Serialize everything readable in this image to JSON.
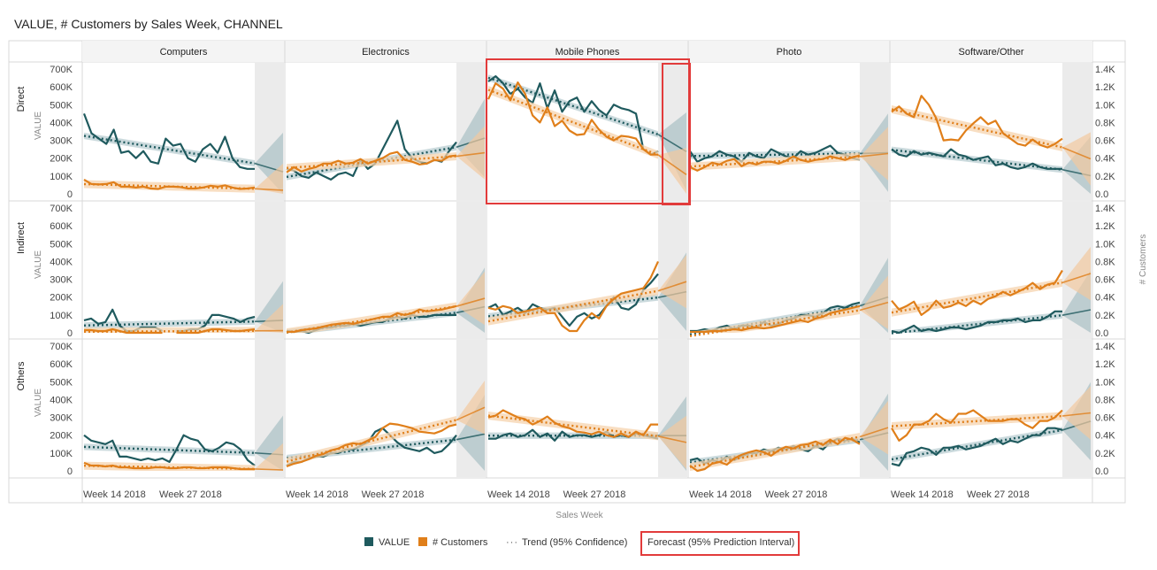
{
  "title": "VALUE, # Customers by Sales Week, CHANNEL",
  "colors": {
    "value": "#1f5a5e",
    "customers": "#e07f1a",
    "value_band": "#b9ced1",
    "customers_band": "#f5d3ad",
    "forecast_bg": "#ebebeb",
    "highlight": "#e23b3b",
    "grid_border": "#d9d9d9"
  },
  "legend": {
    "value": "VALUE",
    "customers": "# Customers",
    "trend": "Trend (95% Confidence)",
    "forecast": "Forecast (95% Prediction Interval)"
  },
  "chart_data": {
    "type": "line",
    "x_axis_title": "Sales Week",
    "y_axis_left_title": "VALUE",
    "y_axis_right_title": "# Customers",
    "x_ticks": [
      "Week 14 2018",
      "Week 27 2018"
    ],
    "y_left_ticks": [
      "0",
      "100K",
      "200K",
      "300K",
      "400K",
      "500K",
      "600K",
      "700K"
    ],
    "y_right_ticks": [
      "0.0",
      "0.2K",
      "0.4K",
      "0.6K",
      "0.8K",
      "1.0K",
      "1.2K",
      "1.4K"
    ],
    "y_left_range": [
      0,
      700000
    ],
    "y_right_range": [
      0,
      1400
    ],
    "columns": [
      "Computers",
      "Electronics",
      "Mobile Phones",
      "Photo",
      "Software/Other"
    ],
    "rows": [
      "Direct",
      "Indirect",
      "Others"
    ],
    "panels": [
      [
        {
          "value": [
            450,
            340,
            310,
            280,
            360,
            230,
            240,
            200,
            240,
            180,
            170,
            310,
            270,
            280,
            200,
            180,
            250,
            280,
            230,
            320,
            200,
            150,
            140,
            140
          ],
          "customers": [
            160,
            110,
            105,
            110,
            130,
            80,
            80,
            70,
            80,
            60,
            55,
            80,
            80,
            75,
            60,
            60,
            70,
            90,
            80,
            95,
            70,
            55,
            60,
            70
          ]
        },
        {
          "value": [
            140,
            130,
            100,
            90,
            120,
            100,
            80,
            110,
            120,
            100,
            190,
            140,
            170,
            250,
            330,
            410,
            250,
            200,
            180,
            170,
            190,
            180,
            240,
            290
          ],
          "customers": [
            240,
            300,
            250,
            280,
            300,
            340,
            340,
            370,
            340,
            350,
            390,
            340,
            370,
            400,
            450,
            470,
            380,
            360,
            330,
            340,
            380,
            370,
            420,
            430
          ]
        },
        {
          "value": [
            630,
            660,
            620,
            560,
            590,
            540,
            510,
            620,
            480,
            580,
            460,
            520,
            540,
            460,
            520,
            470,
            440,
            500,
            480,
            470,
            450,
            250,
            220,
            240
          ],
          "customers": [
            1060,
            1240,
            1180,
            1050,
            1250,
            1120,
            880,
            800,
            970,
            760,
            820,
            710,
            660,
            670,
            830,
            720,
            640,
            600,
            650,
            640,
            620,
            500,
            440,
            440
          ]
        },
        {
          "value": [
            240,
            180,
            200,
            210,
            240,
            220,
            210,
            180,
            230,
            210,
            200,
            250,
            230,
            210,
            200,
            240,
            220,
            230,
            250,
            270,
            230,
            220,
            200,
            190
          ],
          "customers": [
            300,
            260,
            300,
            350,
            330,
            370,
            390,
            310,
            350,
            330,
            360,
            360,
            340,
            370,
            420,
            380,
            360,
            380,
            390,
            420,
            400,
            380,
            410,
            430
          ]
        },
        {
          "value": [
            250,
            220,
            210,
            240,
            220,
            230,
            220,
            210,
            250,
            220,
            210,
            190,
            200,
            210,
            160,
            170,
            150,
            140,
            150,
            170,
            150,
            140,
            140,
            140
          ],
          "customers": [
            920,
            980,
            900,
            860,
            1100,
            1000,
            850,
            600,
            610,
            600,
            710,
            790,
            860,
            780,
            820,
            680,
            620,
            560,
            540,
            610,
            550,
            520,
            560,
            620
          ]
        }
      ],
      [
        {
          "value": [
            70,
            80,
            50,
            60,
            130,
            40,
            10,
            10,
            30,
            30,
            30,
            10,
            null,
            10,
            10,
            20,
            20,
            40,
            100,
            100,
            90,
            80,
            60,
            80,
            90
          ],
          "customers": [
            30,
            30,
            20,
            20,
            40,
            20,
            0,
            0,
            0,
            0,
            0,
            0,
            null,
            0,
            0,
            0,
            0,
            20,
            40,
            40,
            30,
            20,
            20,
            30,
            40
          ]
        },
        {
          "value": [
            10,
            5,
            10,
            0,
            15,
            30,
            30,
            40,
            40,
            50,
            40,
            50,
            60,
            60,
            80,
            90,
            80,
            100,
            90,
            90,
            100,
            100,
            100,
            100
          ],
          "customers": [
            10,
            10,
            30,
            40,
            50,
            70,
            90,
            100,
            110,
            100,
            120,
            140,
            160,
            180,
            180,
            220,
            200,
            220,
            260,
            240,
            250,
            260,
            280,
            300
          ]
        },
        {
          "value": [
            140,
            160,
            100,
            120,
            140,
            110,
            160,
            140,
            130,
            140,
            90,
            40,
            90,
            110,
            80,
            100,
            150,
            200,
            140,
            130,
            160,
            240,
            280,
            330
          ],
          "customers": [
            280,
            260,
            300,
            280,
            220,
            240,
            260,
            280,
            220,
            220,
            80,
            20,
            20,
            140,
            220,
            160,
            300,
            380,
            440,
            460,
            480,
            500,
            620,
            800
          ]
        },
        {
          "value": [
            10,
            10,
            20,
            10,
            30,
            40,
            20,
            40,
            40,
            30,
            60,
            40,
            50,
            70,
            80,
            100,
            100,
            90,
            110,
            140,
            150,
            140,
            160,
            170
          ],
          "customers": [
            10,
            10,
            10,
            20,
            20,
            30,
            40,
            30,
            50,
            60,
            50,
            60,
            80,
            100,
            120,
            140,
            120,
            160,
            180,
            220,
            240,
            260,
            280,
            300
          ]
        },
        {
          "value": [
            10,
            0,
            20,
            40,
            10,
            20,
            10,
            20,
            30,
            30,
            20,
            30,
            40,
            60,
            60,
            70,
            70,
            80,
            60,
            70,
            70,
            90,
            120,
            120
          ],
          "customers": [
            360,
            260,
            300,
            350,
            200,
            260,
            360,
            280,
            300,
            340,
            300,
            360,
            320,
            380,
            410,
            460,
            420,
            460,
            500,
            560,
            490,
            540,
            560,
            700
          ]
        }
      ],
      [
        {
          "value": [
            200,
            170,
            160,
            150,
            170,
            80,
            80,
            70,
            60,
            70,
            60,
            70,
            50,
            120,
            200,
            180,
            170,
            120,
            110,
            130,
            160,
            150,
            120,
            60,
            30
          ],
          "customers": [
            90,
            60,
            60,
            50,
            60,
            40,
            40,
            30,
            30,
            30,
            40,
            40,
            30,
            30,
            40,
            40,
            30,
            30,
            40,
            40,
            40,
            30,
            20,
            20,
            20
          ]
        },
        {
          "value": [
            30,
            50,
            50,
            70,
            80,
            80,
            100,
            100,
            120,
            120,
            140,
            160,
            220,
            240,
            200,
            160,
            130,
            120,
            110,
            130,
            100,
            110,
            150,
            200
          ],
          "customers": [
            50,
            80,
            100,
            130,
            170,
            190,
            230,
            250,
            290,
            310,
            300,
            340,
            380,
            480,
            530,
            520,
            500,
            480,
            440,
            430,
            420,
            450,
            500,
            520
          ]
        },
        {
          "value": [
            180,
            180,
            200,
            210,
            190,
            200,
            230,
            190,
            210,
            170,
            220,
            190,
            200,
            200,
            190,
            200,
            220,
            190,
            200,
            190,
            210,
            200,
            190,
            180
          ],
          "customers": [
            600,
            620,
            680,
            640,
            600,
            580,
            520,
            560,
            610,
            540,
            500,
            480,
            440,
            430,
            410,
            440,
            400,
            380,
            420,
            380,
            440,
            400,
            520,
            520
          ]
        },
        {
          "value": [
            60,
            70,
            40,
            60,
            50,
            80,
            60,
            80,
            100,
            100,
            120,
            110,
            130,
            120,
            140,
            120,
            110,
            140,
            120,
            160,
            180,
            170,
            180,
            160
          ],
          "customers": [
            60,
            0,
            20,
            80,
            100,
            70,
            140,
            180,
            210,
            230,
            210,
            170,
            230,
            270,
            250,
            290,
            300,
            330,
            290,
            350,
            300,
            370,
            350,
            300
          ]
        },
        {
          "value": [
            40,
            30,
            100,
            110,
            130,
            120,
            90,
            130,
            130,
            140,
            120,
            130,
            140,
            160,
            180,
            150,
            170,
            160,
            180,
            200,
            200,
            240,
            240,
            230
          ],
          "customers": [
            480,
            340,
            400,
            520,
            520,
            560,
            640,
            580,
            540,
            640,
            640,
            680,
            620,
            560,
            560,
            560,
            580,
            580,
            520,
            480,
            560,
            560,
            600,
            680
          ]
        }
      ]
    ]
  }
}
